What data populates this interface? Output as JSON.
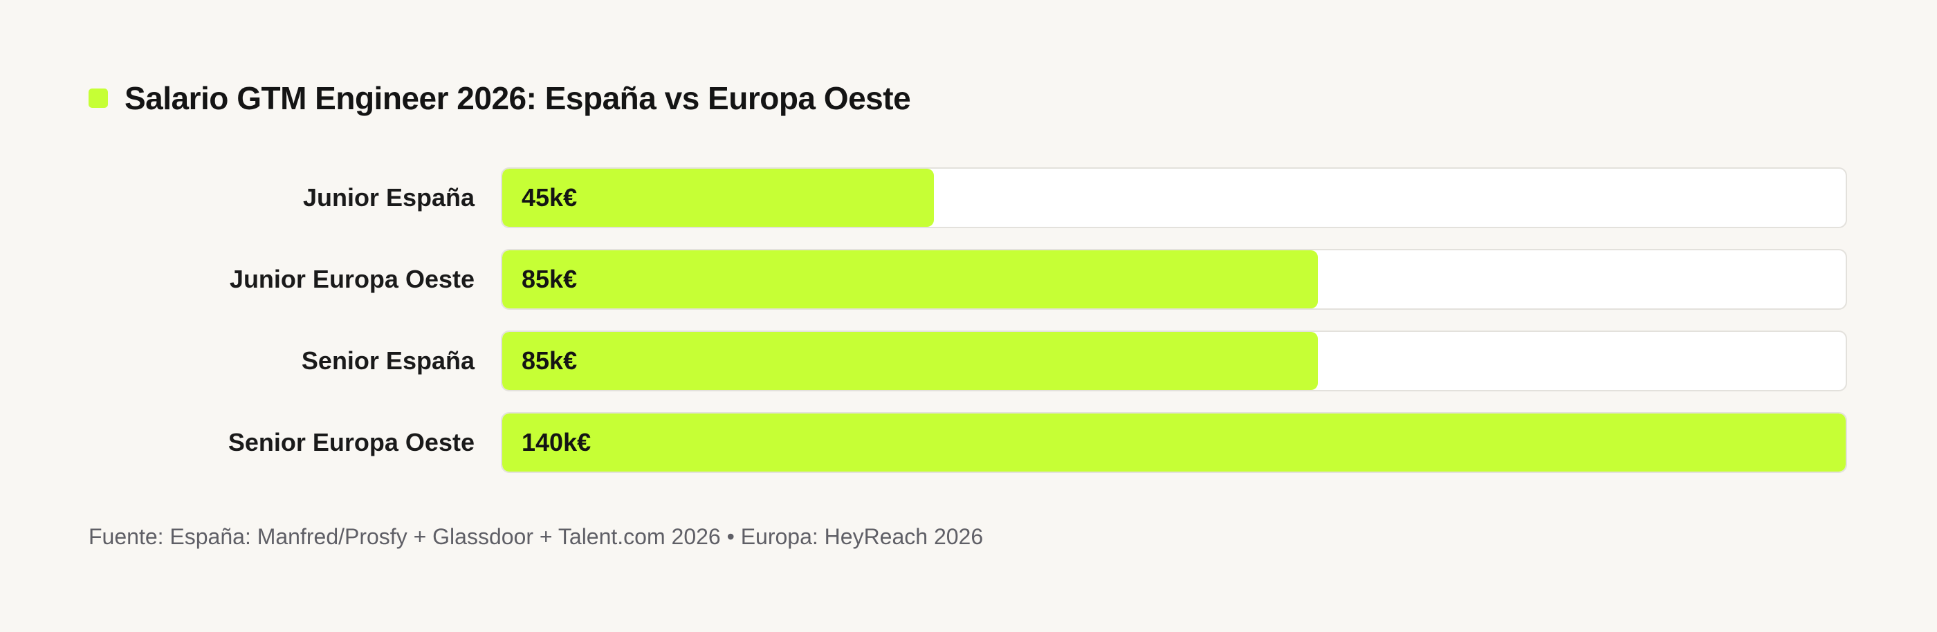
{
  "chart_data": {
    "type": "bar",
    "orientation": "horizontal",
    "title": "Salario GTM Engineer 2026: España vs Europa Oeste",
    "categories": [
      "Junior España",
      "Junior Europa Oeste",
      "Senior España",
      "Senior Europa Oeste"
    ],
    "values": [
      45,
      85,
      85,
      140
    ],
    "value_labels": [
      "45k€",
      "85k€",
      "85k€",
      "140k€"
    ],
    "xlim": [
      0,
      140
    ],
    "grid": false,
    "legend": "none",
    "colors": {
      "bar": "#c6ff35",
      "track": "#ffffff",
      "track_border": "#e3e1dc",
      "title_marker": "#c6ff35",
      "background": "#f9f7f3"
    }
  },
  "footer": {
    "source": "Fuente: España: Manfred/Prosfy + Glassdoor + Talent.com 2026 • Europa: HeyReach 2026"
  }
}
